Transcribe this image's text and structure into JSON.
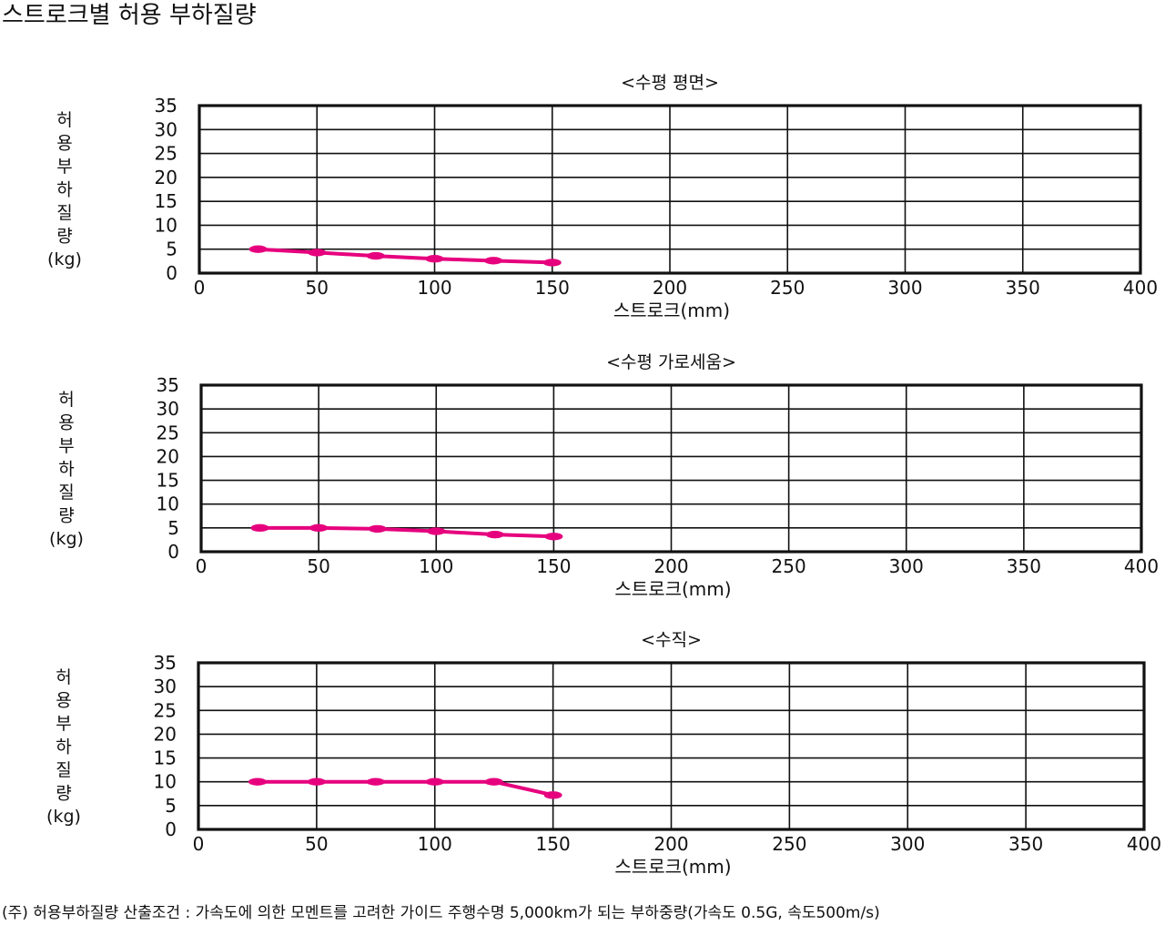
{
  "page_title": "스트로크별 허용 부하질량",
  "footnote": "(주) 허용부하질량 산출조건 : 가속도에 의한 모멘트를 고려한 가이드 주행수명 5,000km가 되는 부하중량(가속도 0.5G, 속도500m/s)",
  "colors": {
    "series": "#e6007e",
    "grid": "#111111"
  },
  "chart_data": [
    {
      "type": "line",
      "title": "<수평 평면>",
      "xlabel": "스트로크(mm)",
      "ylabel": "허용부하질량(kg)",
      "xlim": [
        0,
        400
      ],
      "ylim": [
        0,
        35
      ],
      "xticks": [
        0,
        50,
        100,
        150,
        200,
        250,
        300,
        350,
        400
      ],
      "yticks": [
        0,
        5,
        10,
        15,
        20,
        25,
        30,
        35
      ],
      "grid": true,
      "legend": "none",
      "series": [
        {
          "x": [
            25,
            50,
            75,
            100,
            125,
            150
          ],
          "values": [
            5,
            4.3,
            3.6,
            3.0,
            2.6,
            2.2
          ]
        }
      ]
    },
    {
      "type": "line",
      "title": "<수평 가로세움>",
      "xlabel": "스트로크(mm)",
      "ylabel": "허용부하질량(kg)",
      "xlim": [
        0,
        400
      ],
      "ylim": [
        0,
        35
      ],
      "xticks": [
        0,
        50,
        100,
        150,
        200,
        250,
        300,
        350,
        400
      ],
      "yticks": [
        0,
        5,
        10,
        15,
        20,
        25,
        30,
        35
      ],
      "grid": true,
      "legend": "none",
      "series": [
        {
          "x": [
            25,
            50,
            75,
            100,
            125,
            150
          ],
          "values": [
            5,
            5,
            4.8,
            4.3,
            3.6,
            3.2
          ]
        }
      ]
    },
    {
      "type": "line",
      "title": "<수직>",
      "xlabel": "스트로크(mm)",
      "ylabel": "허용부하질량(kg)",
      "xlim": [
        0,
        400
      ],
      "ylim": [
        0,
        35
      ],
      "xticks": [
        0,
        50,
        100,
        150,
        200,
        250,
        300,
        350,
        400
      ],
      "yticks": [
        0,
        5,
        10,
        15,
        20,
        25,
        30,
        35
      ],
      "grid": true,
      "legend": "none",
      "series": [
        {
          "x": [
            25,
            50,
            75,
            100,
            125,
            150
          ],
          "values": [
            10,
            10,
            10,
            10,
            10,
            7.2
          ]
        }
      ]
    }
  ]
}
